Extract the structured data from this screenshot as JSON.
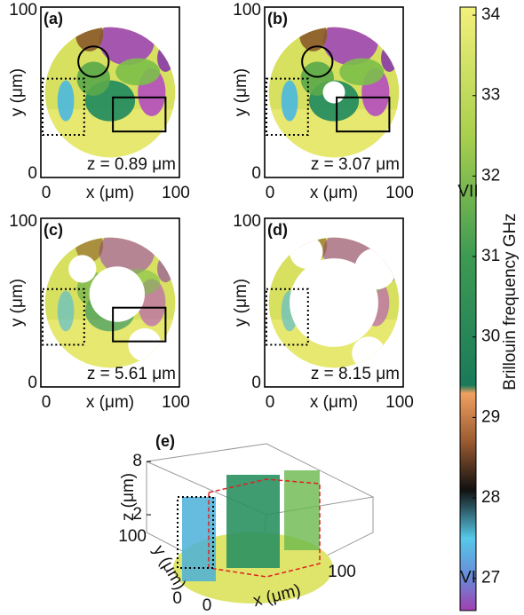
{
  "panels": [
    {
      "label": "(a)",
      "xlabel": "x (μm)",
      "ylabel": "y (μm)",
      "xlim": [
        0,
        100
      ],
      "ylim": [
        0,
        100
      ],
      "xticks": [
        0,
        100
      ],
      "yticks": [
        0,
        100
      ],
      "annotation": "z = 0.89 μm"
    },
    {
      "label": "(b)",
      "xlabel": "x (μm)",
      "ylabel": "y (μm)",
      "xlim": [
        0,
        100
      ],
      "ylim": [
        0,
        100
      ],
      "xticks": [
        0,
        100
      ],
      "yticks": [
        0,
        100
      ],
      "annotation": "z = 3.07 μm"
    },
    {
      "label": "(c)",
      "xlabel": "x (μm)",
      "ylabel": "y (μm)",
      "xlim": [
        0,
        100
      ],
      "ylim": [
        0,
        100
      ],
      "xticks": [
        0,
        100
      ],
      "yticks": [
        0,
        100
      ],
      "annotation": "z = 5.61 μm"
    },
    {
      "label": "(d)",
      "xlabel": "x (μm)",
      "ylabel": "y (μm)",
      "xlim": [
        0,
        100
      ],
      "ylim": [
        0,
        100
      ],
      "xticks": [
        0,
        100
      ],
      "yticks": [
        0,
        100
      ],
      "annotation": "z = 8.15 μm"
    }
  ],
  "panel_3d": {
    "label": "(e)",
    "xlabel": "x (μm)",
    "ylabel": "y (μm)",
    "zlabel": "z (μm)",
    "xlim": [
      0,
      100
    ],
    "ylim": [
      0,
      100
    ],
    "zlim": [
      0,
      8
    ],
    "xticks": [
      0,
      100
    ],
    "yticks": [
      0,
      100
    ],
    "zticks": [
      2,
      8
    ]
  },
  "colorbar": {
    "label": "Brillouin frequency GHz",
    "lim": [
      26.6,
      34.1
    ],
    "ticks": [
      27,
      28,
      29,
      30,
      31,
      32,
      33,
      34
    ],
    "stops": [
      {
        "value": 34.1,
        "color": "#f3f07c"
      },
      {
        "value": 32.5,
        "color": "#a8cf4e"
      },
      {
        "value": 31.0,
        "color": "#3d9a52"
      },
      {
        "value": 29.4,
        "color": "#1a7a5a"
      },
      {
        "value": 29.3,
        "color": "#f0a060"
      },
      {
        "value": 28.7,
        "color": "#9a5a30"
      },
      {
        "value": 28.1,
        "color": "#111111"
      },
      {
        "value": 27.5,
        "color": "#56c8e8"
      },
      {
        "value": 27.0,
        "color": "#6a88d8"
      },
      {
        "value": 26.6,
        "color": "#a040b0"
      }
    ],
    "markers": [
      "VII",
      "VI"
    ]
  }
}
